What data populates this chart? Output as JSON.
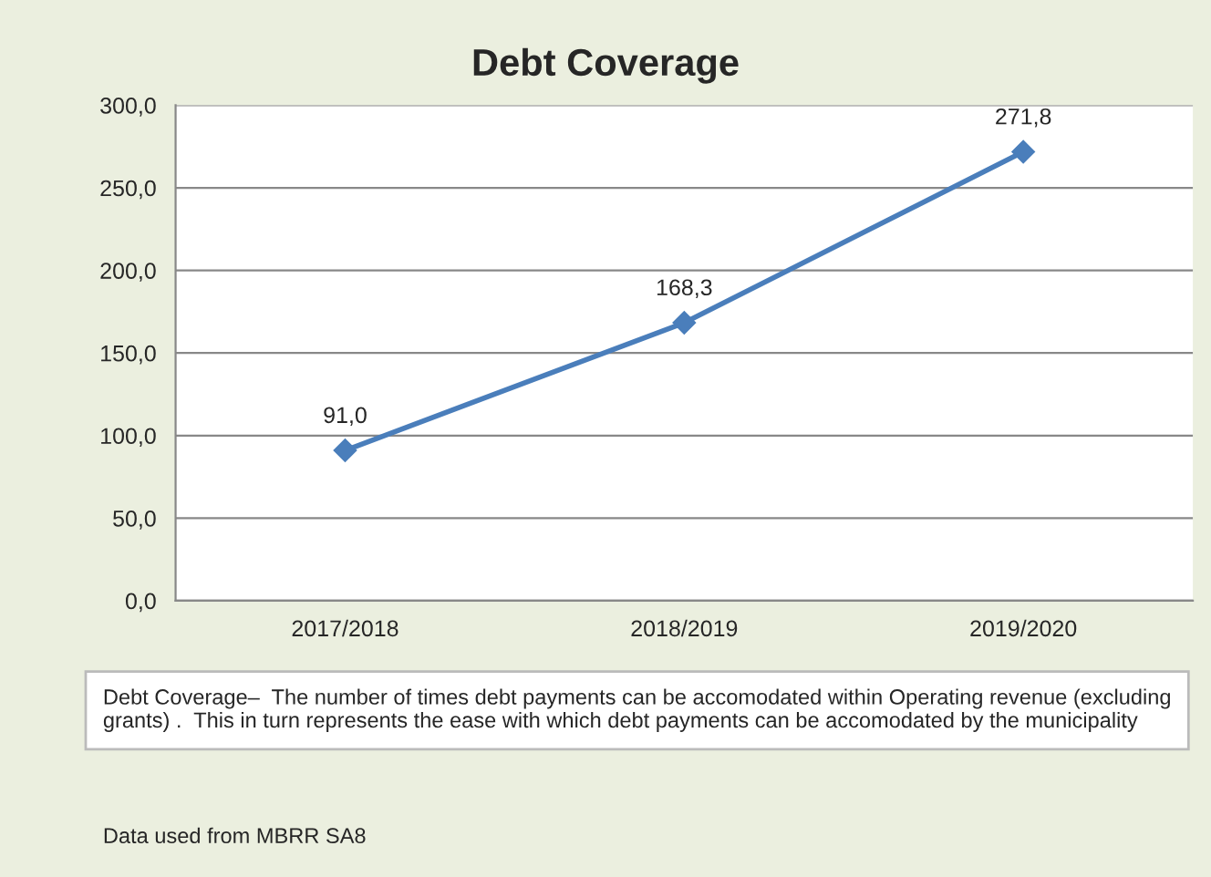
{
  "chart_data": {
    "type": "line",
    "title": "Debt Coverage",
    "categories": [
      "2017/2018",
      "2018/2019",
      "2019/2020"
    ],
    "series": [
      {
        "color": "#4a7ebb",
        "values": [
          91.0,
          168.3,
          271.8
        ],
        "value_labels": [
          "91,0",
          "168,3",
          "271,8"
        ]
      }
    ],
    "ylim": [
      0,
      300
    ],
    "yticks": [
      {
        "value": 0,
        "label": "0,0"
      },
      {
        "value": 50,
        "label": "50,0"
      },
      {
        "value": 100,
        "label": "100,0"
      },
      {
        "value": 150,
        "label": "150,0"
      },
      {
        "value": 200,
        "label": "200,0"
      },
      {
        "value": 250,
        "label": "250,0"
      },
      {
        "value": 300,
        "label": "300,0"
      }
    ],
    "grid": "y",
    "marker": "diamond",
    "line_style": "solid",
    "legend": false,
    "annotations": [
      "Debt Coverage–  The number of times debt payments can be accomodated within Operating revenue (excluding grants) .  This in turn represents the ease with which debt payments can be accomodated by the municipality",
      "Data used from MBRR SA8"
    ]
  }
}
